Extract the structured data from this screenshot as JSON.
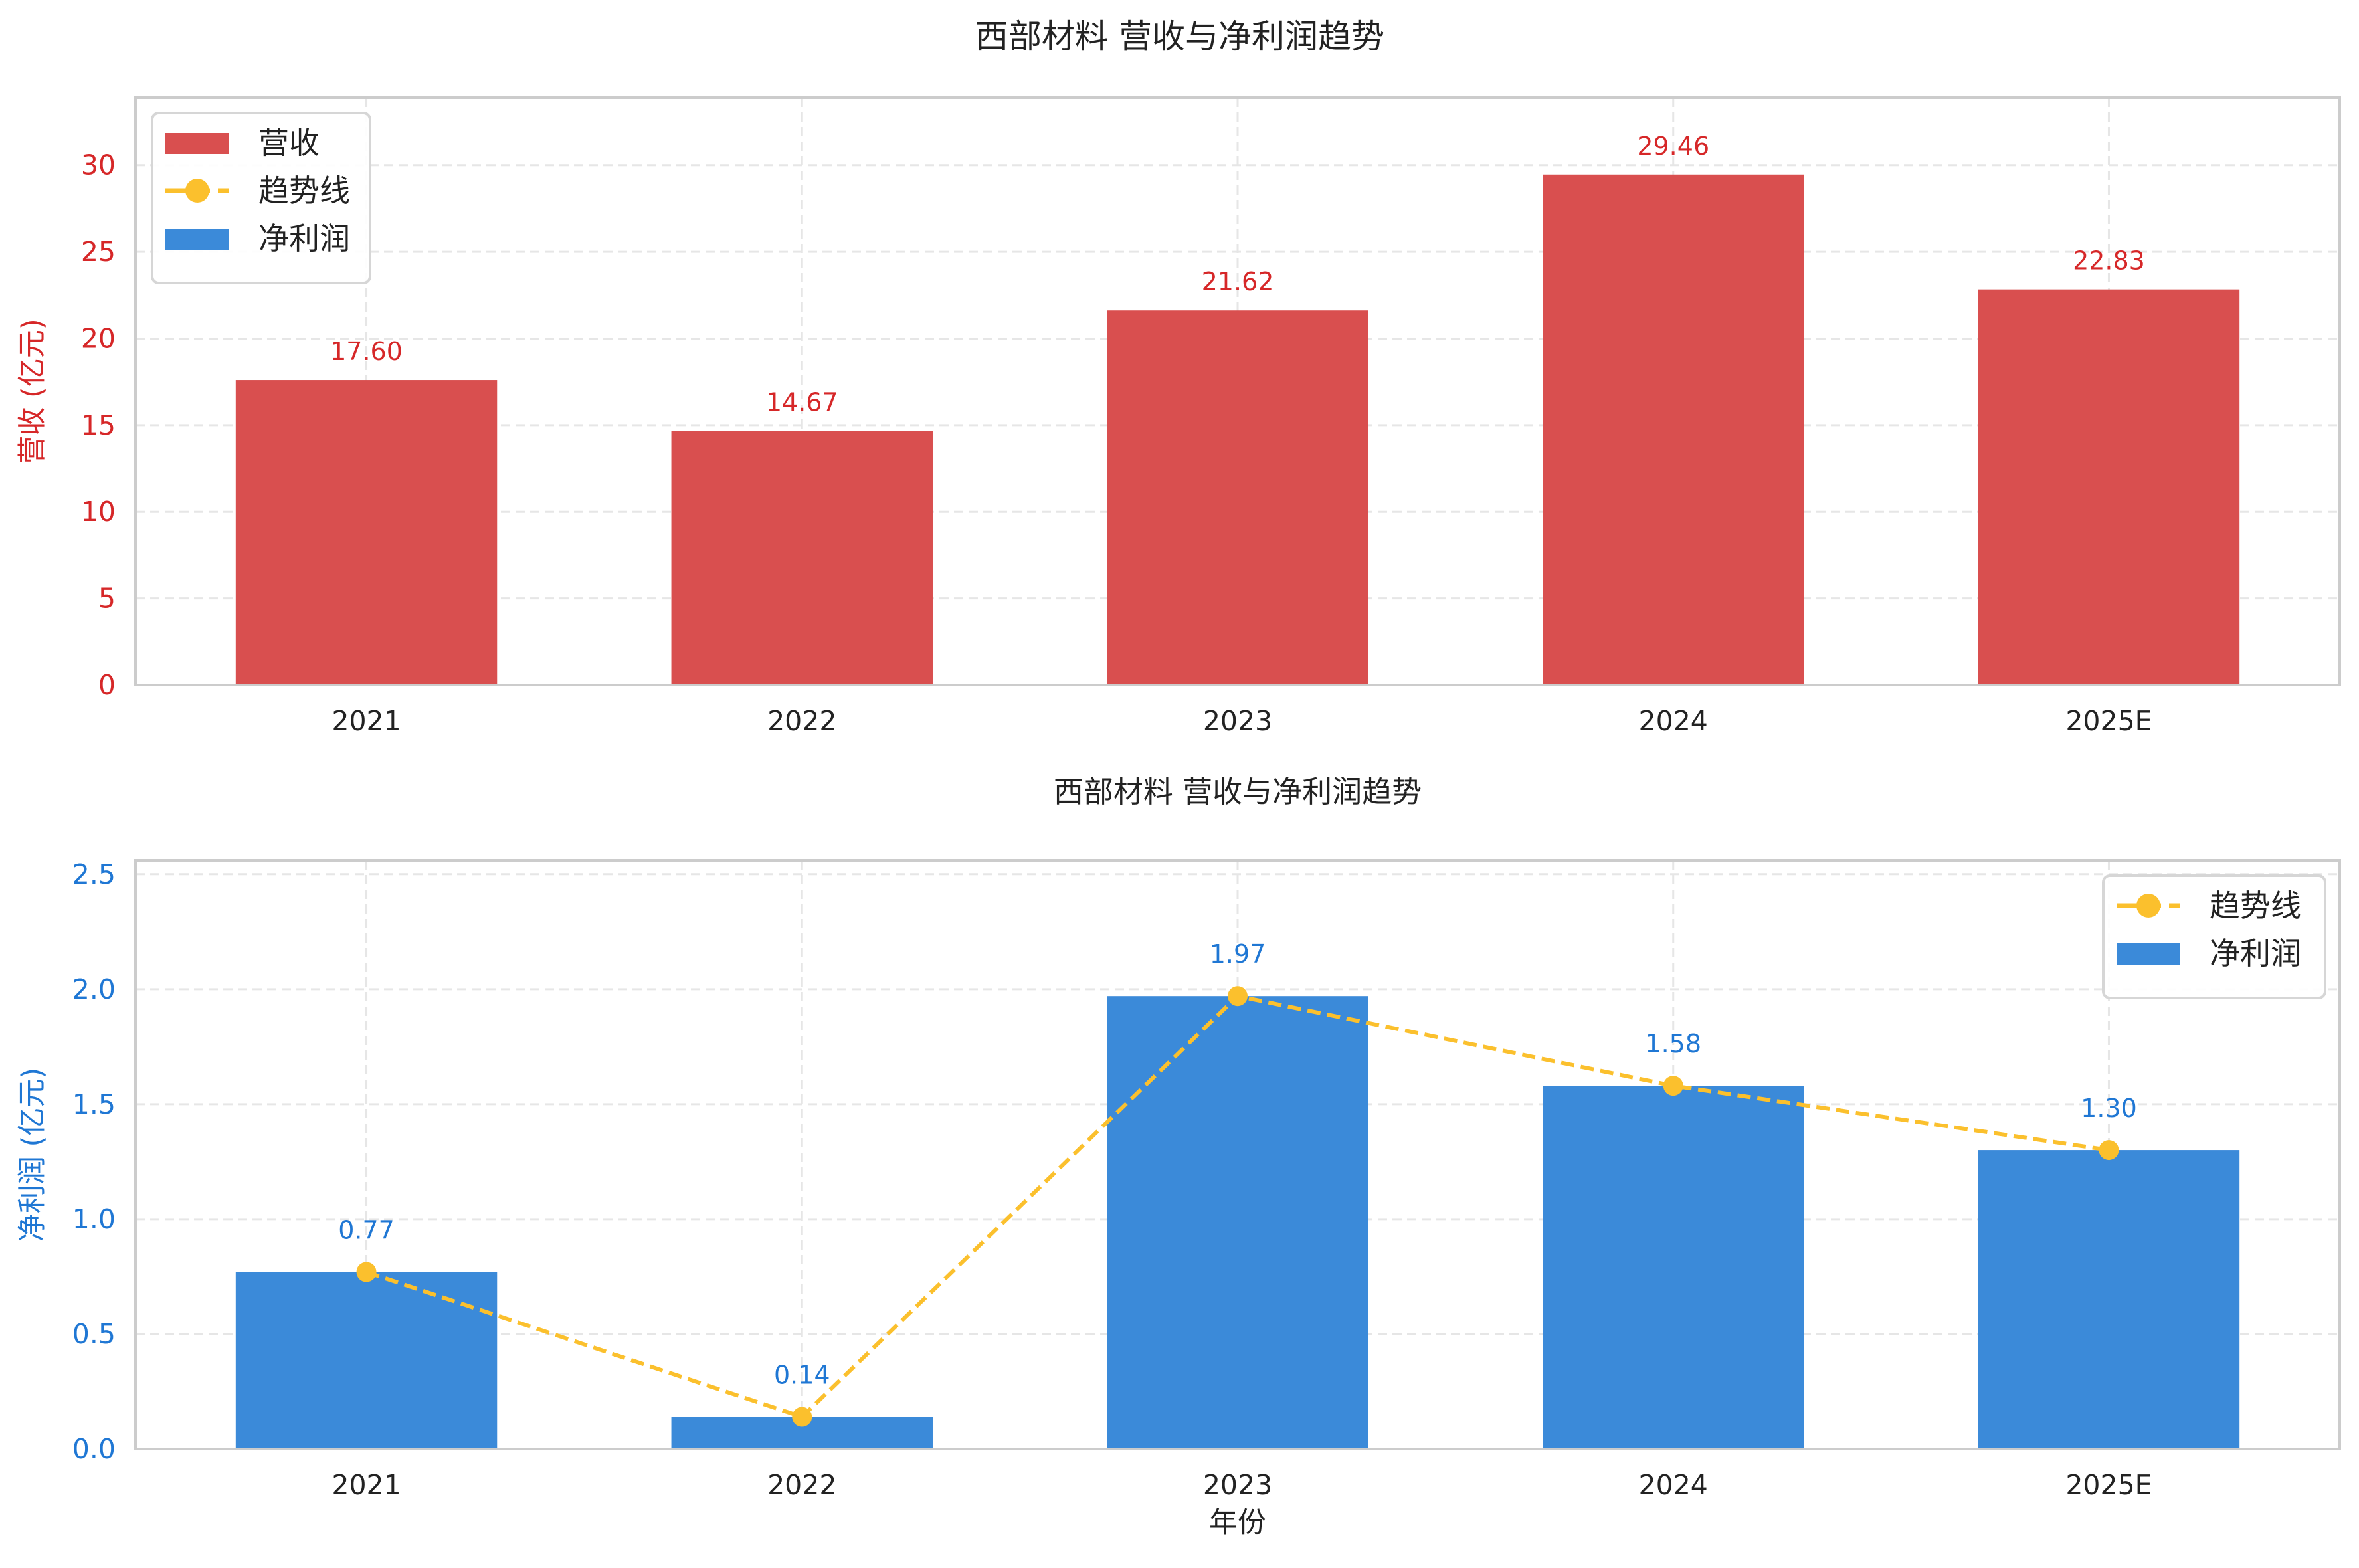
{
  "figure_title": "西部材料 营收与净利润趋势",
  "chart_data": [
    {
      "type": "bar",
      "title": "",
      "categories": [
        "2021",
        "2022",
        "2023",
        "2024",
        "2025E"
      ],
      "series": [
        {
          "name": "营收",
          "values": [
            17.6,
            14.67,
            21.62,
            29.46,
            22.83
          ],
          "color": "#d94f4f"
        }
      ],
      "data_labels": [
        "17.60",
        "14.67",
        "21.62",
        "29.46",
        "22.83"
      ],
      "xlabel": "",
      "ylabel": "营收 (亿元)",
      "ylabel_color": "#d62728",
      "ylim": [
        0,
        33.9
      ],
      "yticks": [
        0,
        5,
        10,
        15,
        20,
        25,
        30
      ],
      "ytick_labels": [
        "0",
        "5",
        "10",
        "15",
        "20",
        "25",
        "30"
      ],
      "grid": true,
      "legend": {
        "placement": "top-left",
        "entries": [
          {
            "label": "营收",
            "kind": "bar",
            "color": "#d94f4f"
          },
          {
            "label": "趋势线",
            "kind": "line-marker",
            "color": "#fbc02d"
          },
          {
            "label": "净利润",
            "kind": "bar",
            "color": "#3b8ad9"
          }
        ]
      }
    },
    {
      "type": "bar",
      "title": "西部材料 营收与净利润趋势",
      "categories": [
        "2021",
        "2022",
        "2023",
        "2024",
        "2025E"
      ],
      "series": [
        {
          "name": "净利润",
          "type": "bar",
          "values": [
            0.77,
            0.14,
            1.97,
            1.58,
            1.3
          ],
          "color": "#3b8ad9"
        },
        {
          "name": "趋势线",
          "type": "line",
          "values": [
            0.77,
            0.14,
            1.97,
            1.58,
            1.3
          ],
          "color": "#fbc02d"
        }
      ],
      "data_labels": [
        "0.77",
        "0.14",
        "1.97",
        "1.58",
        "1.30"
      ],
      "xlabel": "年份",
      "ylabel": "净利润 (亿元)",
      "ylabel_color": "#1f77d4",
      "ylim": [
        0,
        2.56
      ],
      "yticks": [
        0,
        0.5,
        1.0,
        1.5,
        2.0,
        2.5
      ],
      "ytick_labels": [
        "0.0",
        "0.5",
        "1.0",
        "1.5",
        "2.0",
        "2.5"
      ],
      "grid": true,
      "legend": {
        "placement": "top-right",
        "entries": [
          {
            "label": "趋势线",
            "kind": "line-marker",
            "color": "#fbc02d"
          },
          {
            "label": "净利润",
            "kind": "bar",
            "color": "#3b8ad9"
          }
        ]
      }
    }
  ]
}
